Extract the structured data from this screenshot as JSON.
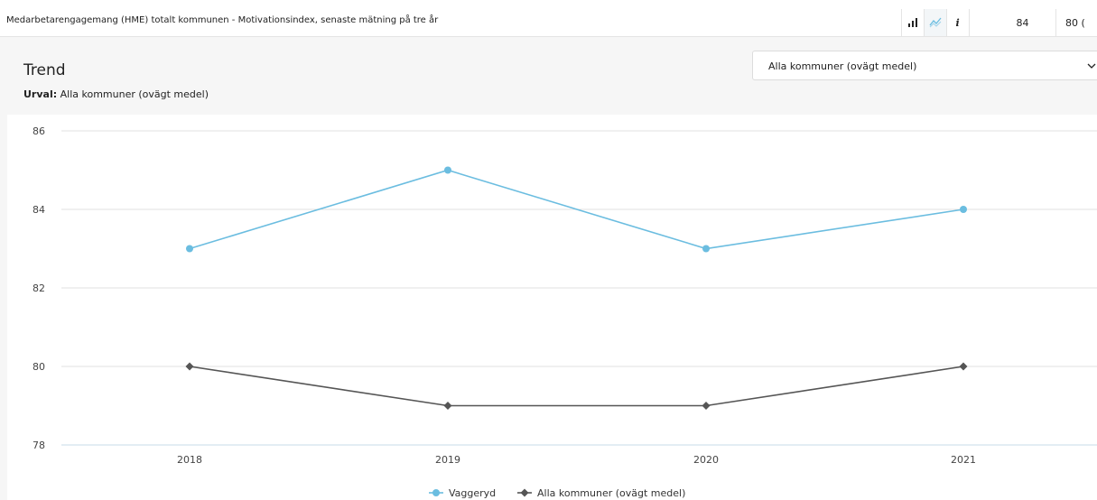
{
  "header": {
    "title": "Medarbetarengagemang (HME) totalt kommunen - Motivationsindex, senaste mätning på tre år",
    "icons": [
      "bar-chart-icon",
      "trend-chart-icon",
      "info-icon"
    ],
    "value_1": "84",
    "value_2": "80 ("
  },
  "panel": {
    "title": "Trend",
    "urval_label": "Urval:",
    "urval_value": "Alla kommuner (ovägt medel)",
    "select_value": "Alla kommuner (ovägt medel)"
  },
  "colors": {
    "vaggeryd": "#6bbde0",
    "alla": "#555555",
    "grid": "#e2e2e2",
    "axis": "#c7dbe8"
  },
  "chart_data": {
    "type": "line",
    "categories": [
      "2018",
      "2019",
      "2020",
      "2021"
    ],
    "ylim": [
      78,
      86
    ],
    "yticks": [
      "86",
      "84",
      "82",
      "80",
      "78"
    ],
    "series": [
      {
        "name": "Vaggeryd",
        "values": [
          83,
          85,
          83,
          84
        ],
        "marker": "circle",
        "color": "#6bbde0"
      },
      {
        "name": "Alla kommuner (ovägt medel)",
        "values": [
          80,
          79,
          79,
          80
        ],
        "marker": "diamond",
        "color": "#555555"
      }
    ],
    "legend_position": "bottom-center",
    "grid": true
  }
}
